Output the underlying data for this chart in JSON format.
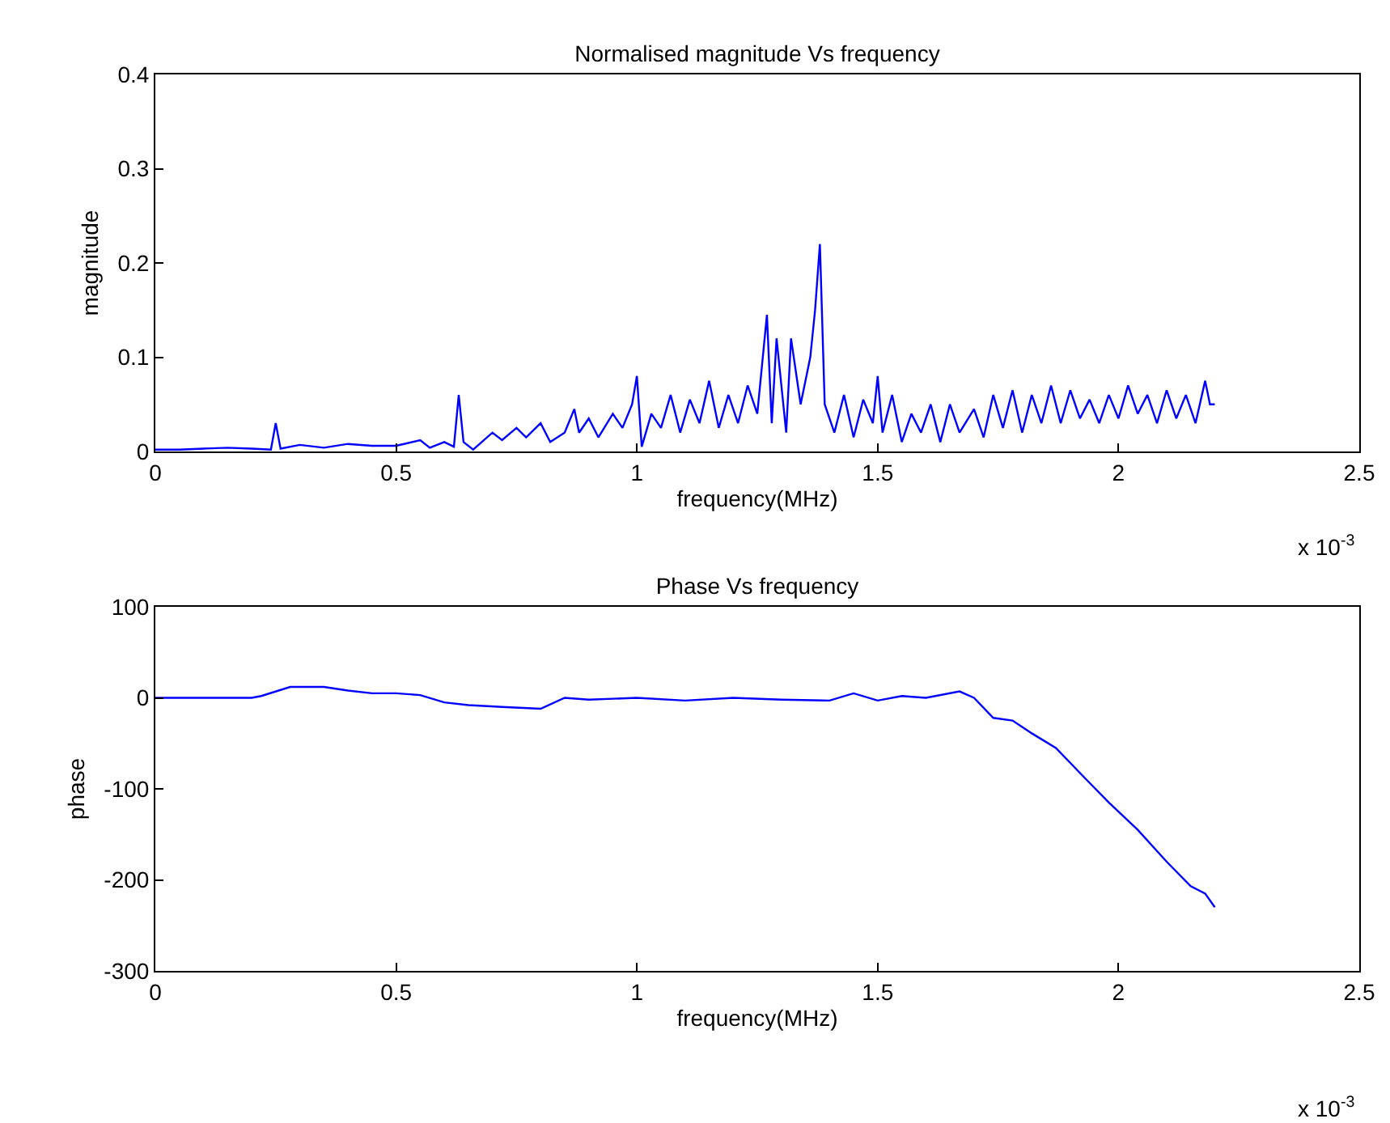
{
  "chart_data": [
    {
      "type": "line",
      "title": "Normalised magnitude Vs frequency",
      "xlabel": "frequency(MHz)",
      "ylabel": "magnitude",
      "color": "#0000ff",
      "x": [
        0,
        0.05,
        0.1,
        0.15,
        0.2,
        0.24,
        0.25,
        0.26,
        0.3,
        0.35,
        0.4,
        0.45,
        0.5,
        0.55,
        0.57,
        0.6,
        0.62,
        0.63,
        0.64,
        0.66,
        0.7,
        0.72,
        0.75,
        0.77,
        0.8,
        0.82,
        0.85,
        0.87,
        0.88,
        0.9,
        0.92,
        0.95,
        0.97,
        0.99,
        1.0,
        1.01,
        1.03,
        1.05,
        1.07,
        1.09,
        1.11,
        1.13,
        1.15,
        1.17,
        1.19,
        1.21,
        1.23,
        1.25,
        1.27,
        1.28,
        1.29,
        1.31,
        1.32,
        1.34,
        1.36,
        1.37,
        1.38,
        1.39,
        1.41,
        1.43,
        1.45,
        1.47,
        1.49,
        1.5,
        1.51,
        1.53,
        1.55,
        1.57,
        1.59,
        1.61,
        1.63,
        1.65,
        1.67,
        1.7,
        1.72,
        1.74,
        1.76,
        1.78,
        1.8,
        1.82,
        1.84,
        1.86,
        1.88,
        1.9,
        1.92,
        1.94,
        1.96,
        1.98,
        2.0,
        2.02,
        2.04,
        2.06,
        2.08,
        2.1,
        2.12,
        2.14,
        2.16,
        2.18,
        2.19,
        2.2
      ],
      "values": [
        0.002,
        0.002,
        0.003,
        0.004,
        0.003,
        0.002,
        0.03,
        0.003,
        0.007,
        0.004,
        0.008,
        0.006,
        0.006,
        0.012,
        0.004,
        0.01,
        0.005,
        0.06,
        0.01,
        0.002,
        0.02,
        0.012,
        0.025,
        0.015,
        0.03,
        0.01,
        0.02,
        0.045,
        0.02,
        0.035,
        0.015,
        0.04,
        0.025,
        0.05,
        0.08,
        0.005,
        0.04,
        0.025,
        0.06,
        0.02,
        0.055,
        0.03,
        0.075,
        0.025,
        0.06,
        0.03,
        0.07,
        0.04,
        0.145,
        0.03,
        0.12,
        0.02,
        0.12,
        0.05,
        0.1,
        0.15,
        0.22,
        0.05,
        0.02,
        0.06,
        0.015,
        0.055,
        0.03,
        0.08,
        0.02,
        0.06,
        0.01,
        0.04,
        0.02,
        0.05,
        0.01,
        0.05,
        0.02,
        0.045,
        0.015,
        0.06,
        0.025,
        0.065,
        0.02,
        0.06,
        0.03,
        0.07,
        0.03,
        0.065,
        0.035,
        0.055,
        0.03,
        0.06,
        0.035,
        0.07,
        0.04,
        0.06,
        0.03,
        0.065,
        0.035,
        0.06,
        0.03,
        0.075,
        0.05,
        0.05
      ],
      "xlim": [
        0,
        2.5
      ],
      "xticks": [
        0,
        0.5,
        1,
        1.5,
        2,
        2.5
      ],
      "ylim": [
        0,
        0.4
      ],
      "yticks": [
        0,
        0.1,
        0.2,
        0.3,
        0.4
      ],
      "annotations": [
        "x 10$^{-3}$"
      ]
    },
    {
      "type": "line",
      "title": "Phase Vs frequency",
      "xlabel": "frequency(MHz)",
      "ylabel": "phase",
      "color": "#0000ff",
      "x": [
        0,
        0.1,
        0.2,
        0.22,
        0.28,
        0.35,
        0.4,
        0.45,
        0.5,
        0.55,
        0.6,
        0.65,
        0.72,
        0.8,
        0.85,
        0.9,
        1.0,
        1.1,
        1.2,
        1.3,
        1.4,
        1.45,
        1.5,
        1.55,
        1.6,
        1.67,
        1.7,
        1.74,
        1.78,
        1.82,
        1.87,
        1.93,
        1.98,
        2.04,
        2.1,
        2.15,
        2.18,
        2.2
      ],
      "values": [
        0,
        0,
        0,
        2,
        12,
        12,
        8,
        5,
        5,
        3,
        -5,
        -8,
        -10,
        -12,
        0,
        -2,
        0,
        -3,
        0,
        -2,
        -3,
        5,
        -3,
        2,
        0,
        7,
        0,
        -22,
        -25,
        -39,
        -55,
        -88,
        -115,
        -145,
        -180,
        -207,
        -215,
        -230
      ],
      "xlim": [
        0,
        2.5
      ],
      "xticks": [
        0,
        0.5,
        1,
        1.5,
        2,
        2.5
      ],
      "ylim": [
        -300,
        100
      ],
      "yticks": [
        -300,
        -200,
        -100,
        0,
        100
      ],
      "annotations": [
        "x 10$^{-3}$"
      ]
    }
  ]
}
